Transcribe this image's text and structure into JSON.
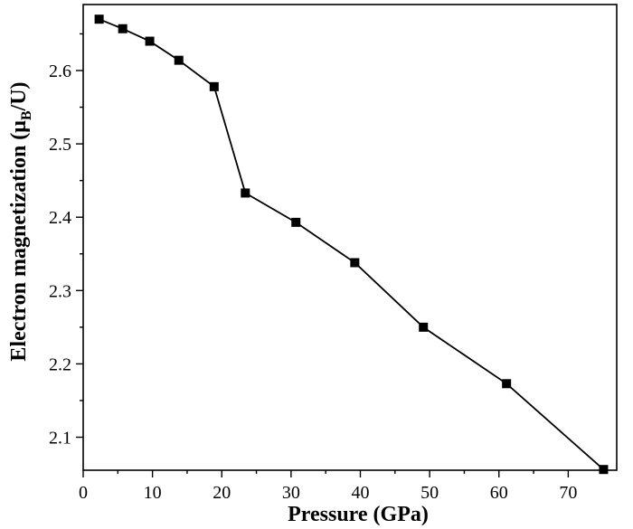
{
  "chart_data": {
    "type": "line",
    "title": "",
    "xlabel": "Pressure (GPa)",
    "ylabel": {
      "prefix": "Electron magnetization (μ",
      "sub": "B",
      "suffix": "/U)"
    },
    "xlim": [
      0,
      77
    ],
    "ylim": [
      2.055,
      2.69
    ],
    "x_ticks": [
      0,
      10,
      20,
      30,
      40,
      50,
      60,
      70
    ],
    "y_ticks": [
      2.1,
      2.2,
      2.3,
      2.4,
      2.5,
      2.6
    ],
    "x_tick_labels": [
      "0",
      "10",
      "20",
      "30",
      "40",
      "50",
      "60",
      "70"
    ],
    "y_tick_labels": [
      "2.1",
      "2.2",
      "2.3",
      "2.4",
      "2.5",
      "2.6"
    ],
    "grid": false,
    "legend": "none",
    "marker": "square",
    "color": "#000000",
    "series": [
      {
        "x": [
          2.3,
          5.7,
          9.6,
          13.8,
          18.9,
          23.4,
          30.7,
          39.2,
          49.1,
          61.1,
          75.1
        ],
        "y": [
          2.67,
          2.657,
          2.64,
          2.614,
          2.578,
          2.433,
          2.393,
          2.338,
          2.25,
          2.173,
          2.056
        ]
      }
    ]
  }
}
